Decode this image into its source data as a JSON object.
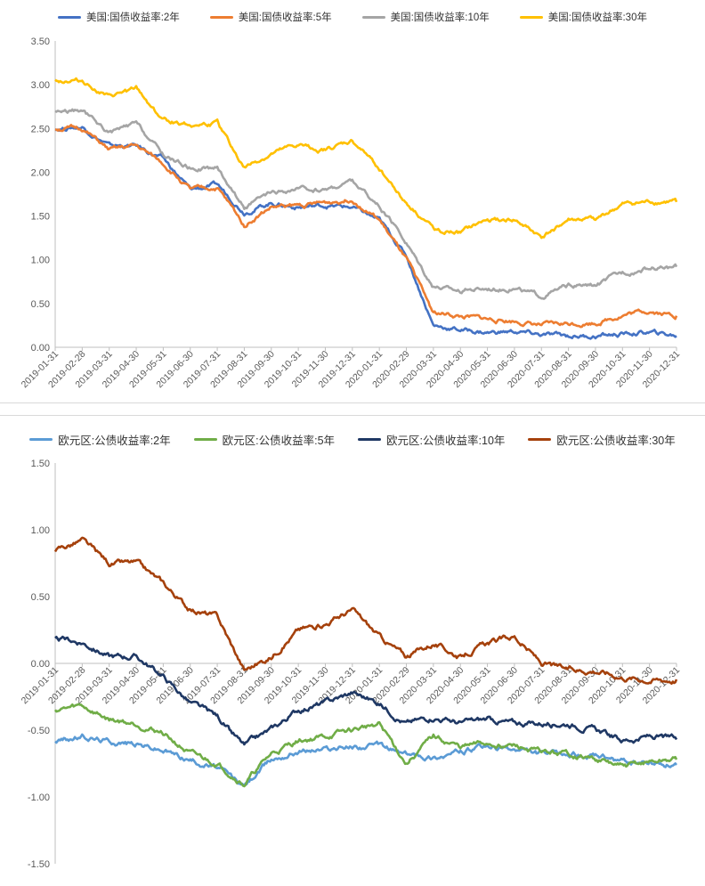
{
  "chart_data": [
    {
      "id": "us",
      "type": "line",
      "title": "",
      "xlabel": "",
      "ylabel": "",
      "ylim": [
        0,
        3.5
      ],
      "yticks": [
        "0.00",
        "0.50",
        "1.00",
        "1.50",
        "2.00",
        "2.50",
        "3.00",
        "3.50"
      ],
      "ytick_values": [
        0,
        0.5,
        1.0,
        1.5,
        2.0,
        2.5,
        3.0,
        3.5
      ],
      "grid": false,
      "legend": "top",
      "xticks": [
        "2019-01-31",
        "2019-02-28",
        "2019-03-31",
        "2019-04-30",
        "2019-05-31",
        "2019-06-30",
        "2019-07-31",
        "2019-08-31",
        "2019-09-30",
        "2019-10-31",
        "2019-11-30",
        "2019-12-31",
        "2020-01-31",
        "2020-02-29",
        "2020-03-31",
        "2020-04-30",
        "2020-05-31",
        "2020-06-30",
        "2020-07-31",
        "2020-08-31",
        "2020-09-30",
        "2020-10-31",
        "2020-11-30",
        "2020-12-31"
      ],
      "x": [
        "2019-01",
        "2019-02",
        "2019-03",
        "2019-04",
        "2019-05",
        "2019-06",
        "2019-07",
        "2019-08",
        "2019-09",
        "2019-10",
        "2019-11",
        "2019-12",
        "2020-01",
        "2020-02",
        "2020-03",
        "2020-04",
        "2020-05",
        "2020-06",
        "2020-07",
        "2020-08",
        "2020-09",
        "2020-10",
        "2020-11",
        "2020-12"
      ],
      "series": [
        {
          "name": "美国:国债收益率:2年",
          "color": "#4472c4",
          "values": [
            2.5,
            2.52,
            2.3,
            2.3,
            2.15,
            1.8,
            1.85,
            1.55,
            1.65,
            1.6,
            1.62,
            1.6,
            1.45,
            1.05,
            0.25,
            0.2,
            0.17,
            0.18,
            0.14,
            0.13,
            0.13,
            0.15,
            0.17,
            0.13
          ]
        },
        {
          "name": "美国:国债收益率:5年",
          "color": "#ed7d31",
          "values": [
            2.5,
            2.5,
            2.25,
            2.3,
            2.1,
            1.8,
            1.82,
            1.4,
            1.6,
            1.62,
            1.65,
            1.7,
            1.45,
            1.0,
            0.4,
            0.35,
            0.32,
            0.3,
            0.25,
            0.27,
            0.28,
            0.37,
            0.42,
            0.36
          ]
        },
        {
          "name": "美国:国债收益率:10年",
          "color": "#a5a5a5",
          "values": [
            2.7,
            2.7,
            2.45,
            2.55,
            2.2,
            2.05,
            2.05,
            1.6,
            1.75,
            1.8,
            1.8,
            1.9,
            1.6,
            1.2,
            0.7,
            0.65,
            0.68,
            0.68,
            0.58,
            0.7,
            0.7,
            0.85,
            0.9,
            0.92
          ]
        },
        {
          "name": "美国:国债收益率:30年",
          "color": "#ffc000",
          "values": [
            3.05,
            3.05,
            2.85,
            2.95,
            2.6,
            2.55,
            2.55,
            2.05,
            2.2,
            2.3,
            2.25,
            2.35,
            2.05,
            1.65,
            1.35,
            1.3,
            1.45,
            1.45,
            1.25,
            1.45,
            1.45,
            1.62,
            1.65,
            1.66
          ]
        }
      ]
    },
    {
      "id": "eu",
      "type": "line",
      "title": "",
      "xlabel": "",
      "ylabel": "",
      "ylim": [
        -1.5,
        1.5
      ],
      "yticks": [
        "1.50",
        "1.00",
        "0.50",
        "0.00",
        "-0.50",
        "-1.00",
        "-1.50"
      ],
      "ytick_values": [
        1.5,
        1.0,
        0.5,
        0.0,
        -0.5,
        -1.0,
        -1.5
      ],
      "grid": false,
      "legend": "top",
      "xticks": [
        "2019-01-31",
        "2019-02-28",
        "2019-03-31",
        "2019-04-30",
        "2019-05-31",
        "2019-06-30",
        "2019-07-31",
        "2019-08-31",
        "2019-09-30",
        "2019-10-31",
        "2019-11-30",
        "2019-12-31",
        "2020-01-31",
        "2020-02-29",
        "2020-03-31",
        "2020-04-30",
        "2020-05-31",
        "2020-06-30",
        "2020-07-31",
        "2020-08-31",
        "2020-09-30",
        "2020-10-31",
        "2020-11-30",
        "2020-12-31"
      ],
      "x": [
        "2019-01",
        "2019-02",
        "2019-03",
        "2019-04",
        "2019-05",
        "2019-06",
        "2019-07",
        "2019-08",
        "2019-09",
        "2019-10",
        "2019-11",
        "2019-12",
        "2020-01",
        "2020-02",
        "2020-03",
        "2020-04",
        "2020-05",
        "2020-06",
        "2020-07",
        "2020-08",
        "2020-09",
        "2020-10",
        "2020-11",
        "2020-12"
      ],
      "series": [
        {
          "name": "欧元区:公债收益率:2年",
          "color": "#5b9bd5",
          "values": [
            -0.58,
            -0.55,
            -0.58,
            -0.6,
            -0.65,
            -0.72,
            -0.78,
            -0.92,
            -0.72,
            -0.65,
            -0.64,
            -0.62,
            -0.62,
            -0.68,
            -0.7,
            -0.66,
            -0.63,
            -0.65,
            -0.68,
            -0.68,
            -0.7,
            -0.74,
            -0.75,
            -0.76
          ]
        },
        {
          "name": "欧元区:公债收益率:5年",
          "color": "#70ad47",
          "values": [
            -0.35,
            -0.32,
            -0.42,
            -0.45,
            -0.52,
            -0.68,
            -0.75,
            -0.9,
            -0.68,
            -0.58,
            -0.55,
            -0.5,
            -0.45,
            -0.75,
            -0.55,
            -0.63,
            -0.6,
            -0.62,
            -0.67,
            -0.68,
            -0.72,
            -0.78,
            -0.74,
            -0.72
          ]
        },
        {
          "name": "欧元区:公债收益率:10年",
          "color": "#1f3864",
          "values": [
            0.18,
            0.16,
            0.05,
            0.05,
            -0.1,
            -0.3,
            -0.4,
            -0.62,
            -0.5,
            -0.35,
            -0.3,
            -0.22,
            -0.3,
            -0.45,
            -0.4,
            -0.45,
            -0.42,
            -0.45,
            -0.45,
            -0.45,
            -0.5,
            -0.58,
            -0.55,
            -0.57
          ]
        },
        {
          "name": "欧元区:公债收益率:30年",
          "color": "#a5410c",
          "values": [
            0.85,
            0.92,
            0.75,
            0.75,
            0.6,
            0.4,
            0.35,
            -0.05,
            0.05,
            0.25,
            0.3,
            0.4,
            0.2,
            0.05,
            0.15,
            0.05,
            0.15,
            0.2,
            0.0,
            -0.05,
            -0.05,
            -0.1,
            -0.12,
            -0.12
          ]
        }
      ]
    }
  ]
}
